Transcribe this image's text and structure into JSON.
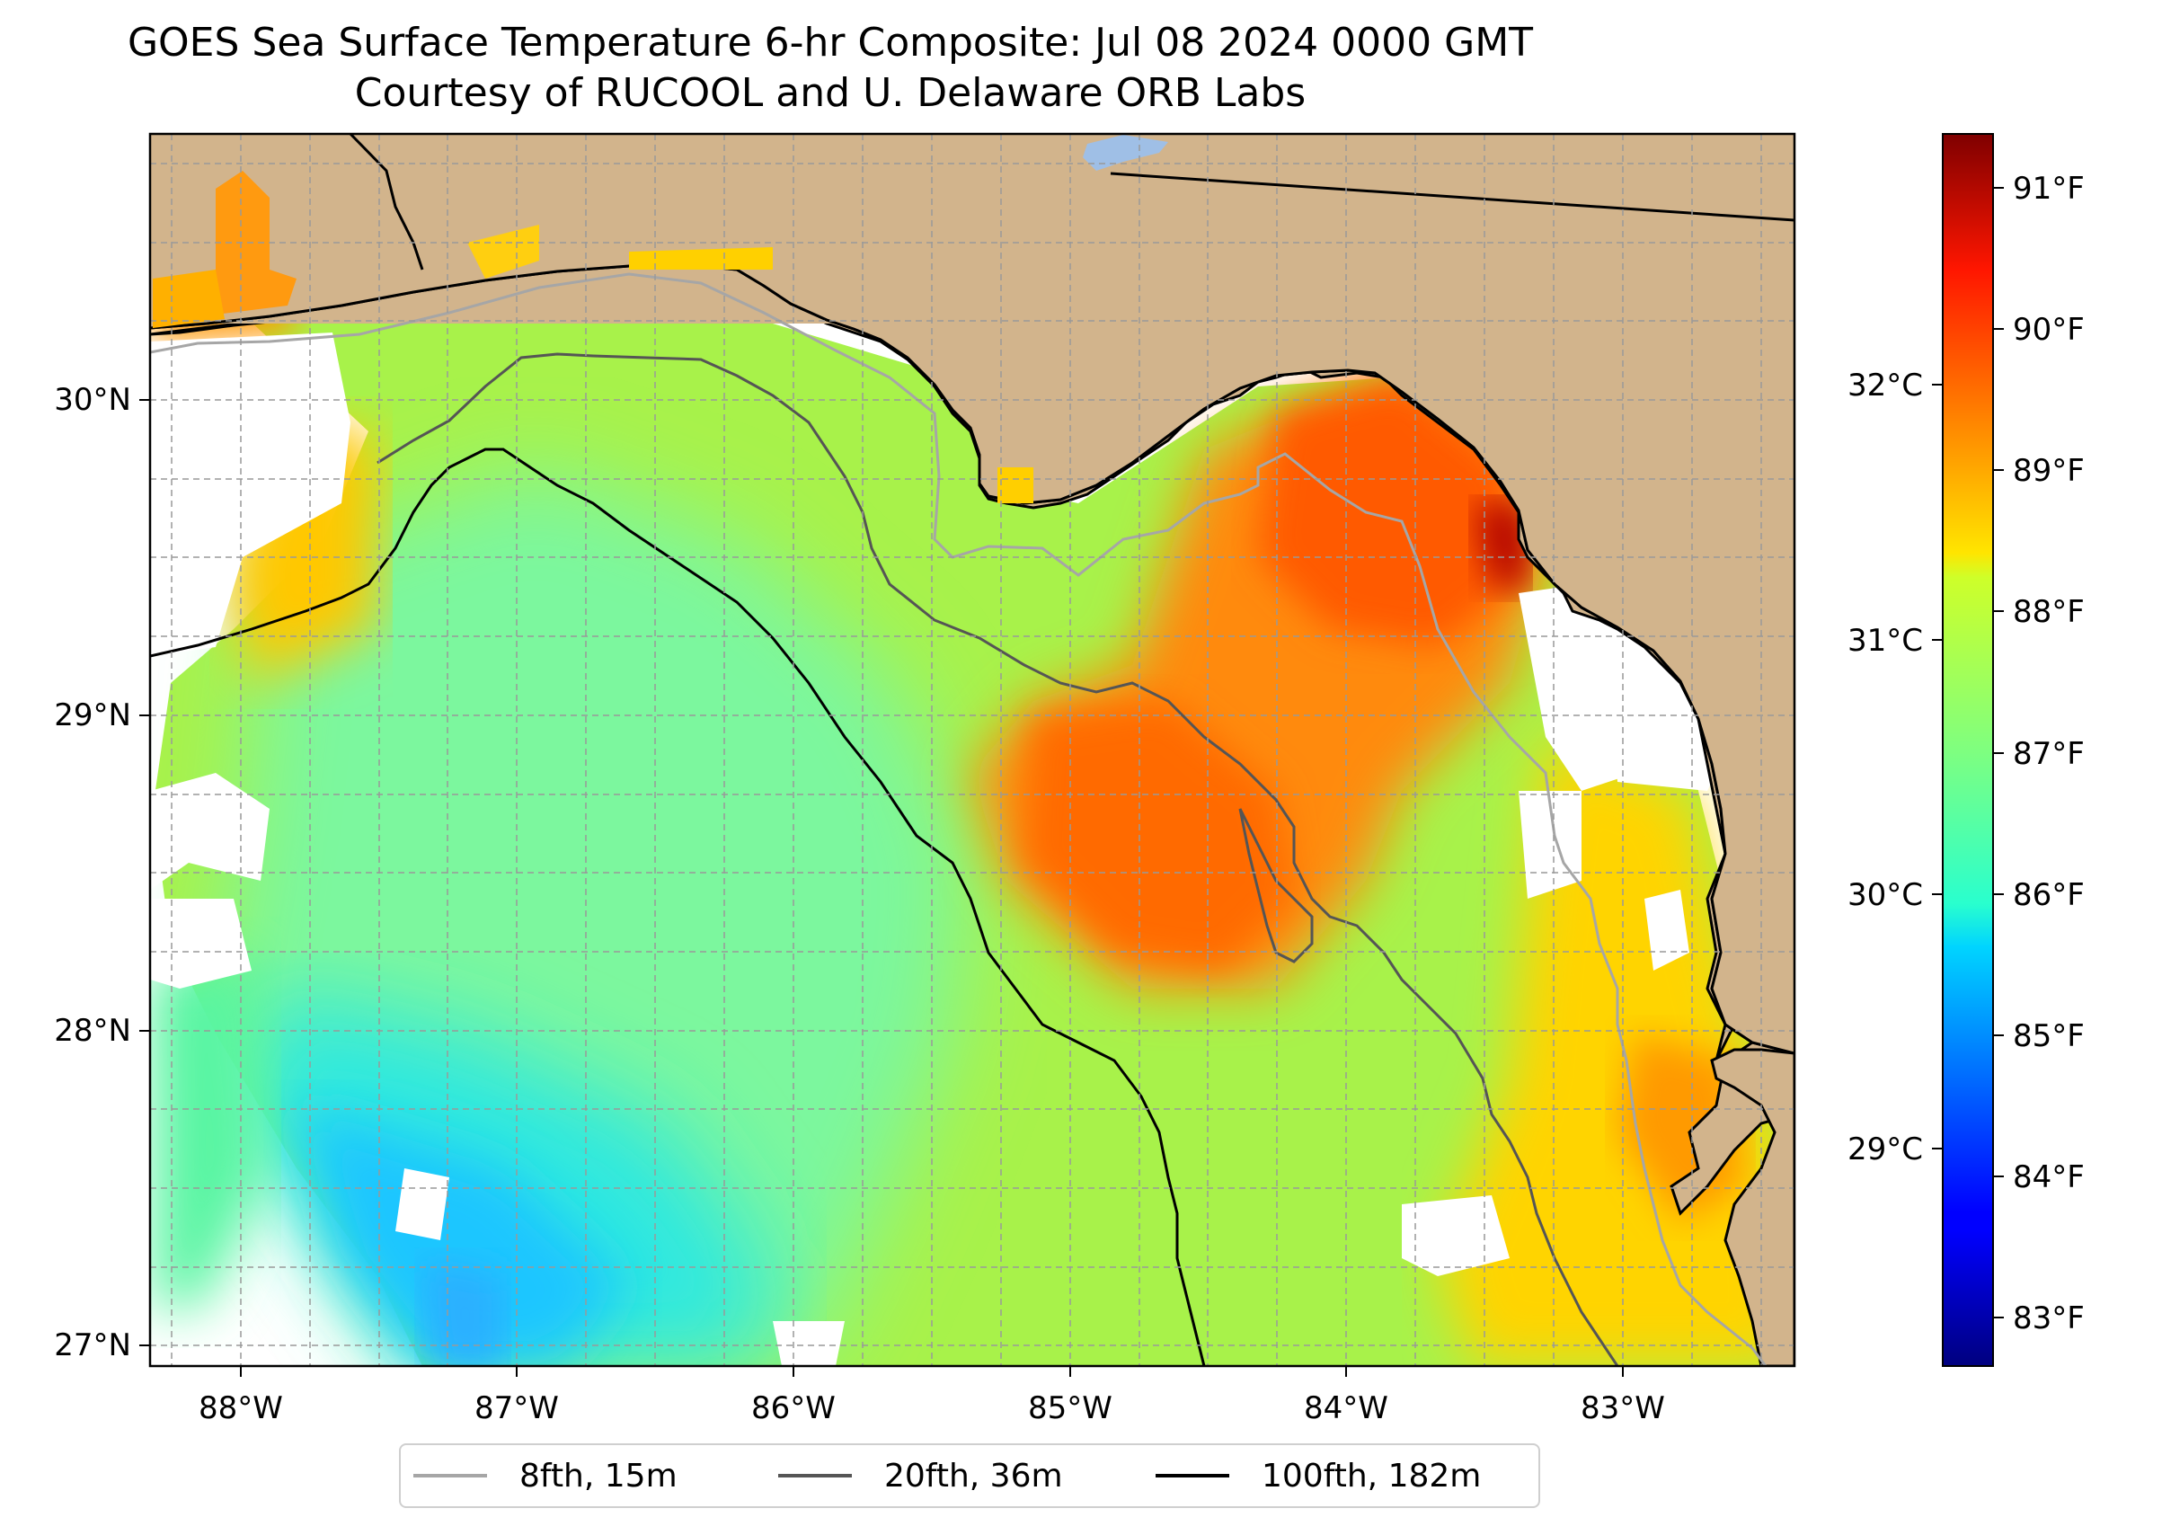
{
  "title_line1": "GOES Sea Surface Temperature 6-hr Composite: Jul 08 2024 0000 GMT",
  "title_line2": "Courtesy of RUCOOL and U. Delaware ORB Labs",
  "map": {
    "lon_range": [
      -88.33,
      -82.37
    ],
    "lat_range": [
      26.94,
      30.85
    ],
    "lon_ticks": [
      "88°W",
      "87°W",
      "86°W",
      "85°W",
      "84°W",
      "83°W"
    ],
    "lat_ticks": [
      "27°N",
      "28°N",
      "29°N",
      "30°N"
    ],
    "land_color": "#d2b48c",
    "no_data_color": "#ffffff",
    "grid": true
  },
  "colorbar": {
    "colormap": "jet",
    "fahrenheit_ticks": [
      "83°F",
      "84°F",
      "85°F",
      "86°F",
      "87°F",
      "88°F",
      "89°F",
      "90°F",
      "91°F"
    ],
    "celsius_ticks": [
      "29°C",
      "30°C",
      "31°C",
      "32°C"
    ],
    "range_f": [
      82.7,
      91.4
    ]
  },
  "legend": [
    {
      "label": "8fth, 15m",
      "color": "#a6a6a6"
    },
    {
      "label": "20fth, 36m",
      "color": "#555555"
    },
    {
      "label": "100fth, 182m",
      "color": "#000000"
    }
  ]
}
